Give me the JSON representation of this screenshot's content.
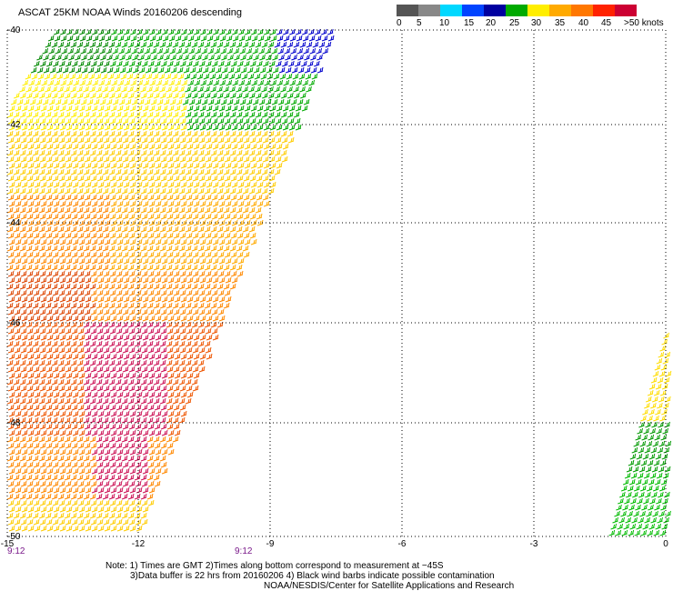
{
  "title": "ASCAT 25KM NOAA Winds 20160206 descending",
  "legend": {
    "labels": [
      "0",
      "5",
      "10",
      "15",
      "20",
      "25",
      "30",
      "35",
      "40",
      "45",
      ">50 knots"
    ],
    "colors": [
      "#555555",
      "#888888",
      "#00d8ff",
      "#0044ff",
      "#0000a0",
      "#00aa00",
      "#ffee00",
      "#ffaa00",
      "#ff7700",
      "#ff2200",
      "#cc0033",
      "#8b4a2b",
      "#ff66ff",
      "#cc00cc",
      "#6600aa"
    ]
  },
  "map": {
    "lon_ticks": [
      "-15",
      "-12",
      "-9",
      "-6",
      "-3",
      "0"
    ],
    "lat_ticks": [
      "-40",
      "-42",
      "-44",
      "-46",
      "-48",
      "-50"
    ],
    "times": [
      "9:12",
      "9:12"
    ]
  },
  "notes": {
    "line1": "Note: 1) Times are GMT 2)Times along bottom correspond to measurement at −45S",
    "line2": "3)Data buffer is 22 hrs from 20160206 4) Black wind barbs indicate possible contamination",
    "line3": "NOAA/NESDIS/Center for Satellite Applications and Research"
  }
}
